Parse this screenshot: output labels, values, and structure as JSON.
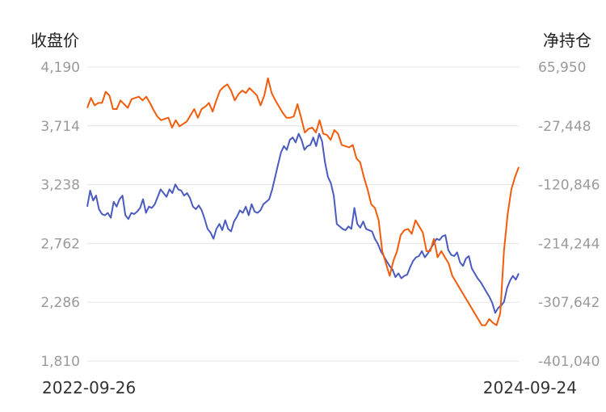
{
  "left_axis_title": "收盘价",
  "right_axis_title": "净持仓",
  "date_start": "2022-09-26",
  "date_end": "2024-09-24",
  "colors": {
    "close": "#4a5bbf",
    "net_position": "#f25c0a",
    "grid": "#e6e6e6",
    "tick": "#9a9a9a"
  },
  "chart_data": {
    "type": "line",
    "x_range": [
      "2022-09-26",
      "2024-09-24"
    ],
    "left_axis": {
      "ticks": [
        "4,190",
        "3,714",
        "3,238",
        "2,762",
        "2,286",
        "1,810"
      ],
      "ylim": [
        1810,
        4190
      ]
    },
    "right_axis": {
      "ticks": [
        "65,950",
        "-27,448",
        "-120,846",
        "-214,244",
        "-307,642",
        "-401,040"
      ],
      "ylim": [
        -401040,
        65950
      ]
    },
    "grid": true,
    "series": [
      {
        "key": "close",
        "axis": "left",
        "values": [
          3060,
          3190,
          3110,
          3150,
          3040,
          3000,
          2990,
          3010,
          2970,
          3100,
          3060,
          3120,
          3150,
          2990,
          2960,
          3010,
          3000,
          3020,
          3050,
          3120,
          3010,
          3060,
          3050,
          3080,
          3140,
          3200,
          3170,
          3140,
          3200,
          3170,
          3240,
          3200,
          3190,
          3150,
          3170,
          3130,
          3060,
          3040,
          3070,
          3030,
          2960,
          2880,
          2850,
          2800,
          2880,
          2920,
          2870,
          2950,
          2880,
          2860,
          2940,
          2980,
          3030,
          3010,
          3060,
          2990,
          3080,
          3020,
          3010,
          3030,
          3080,
          3100,
          3120,
          3200,
          3300,
          3400,
          3500,
          3550,
          3520,
          3600,
          3620,
          3580,
          3650,
          3600,
          3520,
          3550,
          3560,
          3620,
          3550,
          3650,
          3590,
          3420,
          3300,
          3250,
          3150,
          2920,
          2900,
          2880,
          2870,
          2900,
          2880,
          3050,
          2920,
          2890,
          2940,
          2880,
          2870,
          2860,
          2800,
          2760,
          2700,
          2660,
          2620,
          2580,
          2550,
          2490,
          2520,
          2480,
          2500,
          2510,
          2570,
          2620,
          2650,
          2660,
          2700,
          2650,
          2680,
          2720,
          2760,
          2800,
          2790,
          2820,
          2830,
          2710,
          2670,
          2660,
          2690,
          2610,
          2580,
          2640,
          2660,
          2560,
          2520,
          2480,
          2450,
          2410,
          2370,
          2330,
          2280,
          2200,
          2240,
          2260,
          2290,
          2400,
          2460,
          2500,
          2470,
          2520
        ],
        "name": ""
      },
      {
        "key": "net_position",
        "axis": "left_scaled",
        "values": [
          3860,
          3940,
          3880,
          3900,
          3900,
          3990,
          3960,
          3850,
          3850,
          3920,
          3890,
          3860,
          3930,
          3940,
          3950,
          3920,
          3950,
          3900,
          3840,
          3790,
          3760,
          3770,
          3780,
          3700,
          3760,
          3710,
          3730,
          3750,
          3800,
          3850,
          3780,
          3850,
          3870,
          3900,
          3830,
          3920,
          4000,
          4030,
          4050,
          4000,
          3920,
          3970,
          4000,
          3980,
          4020,
          3990,
          3960,
          3880,
          3960,
          4100,
          3980,
          3920,
          3870,
          3820,
          3780,
          3780,
          3790,
          3890,
          3780,
          3660,
          3690,
          3700,
          3660,
          3760,
          3650,
          3640,
          3600,
          3680,
          3650,
          3560,
          3550,
          3540,
          3560,
          3450,
          3420,
          3300,
          3200,
          3080,
          3050,
          2950,
          2700,
          2600,
          2500,
          2620,
          2700,
          2830,
          2870,
          2880,
          2840,
          2950,
          2900,
          2850,
          2700,
          2700,
          2800,
          2650,
          2700,
          2650,
          2600,
          2500,
          2450,
          2400,
          2350,
          2300,
          2250,
          2200,
          2150,
          2100,
          2100,
          2150,
          2120,
          2100,
          2200,
          2700,
          3000,
          3200,
          3300,
          3380
        ]
      }
    ]
  }
}
